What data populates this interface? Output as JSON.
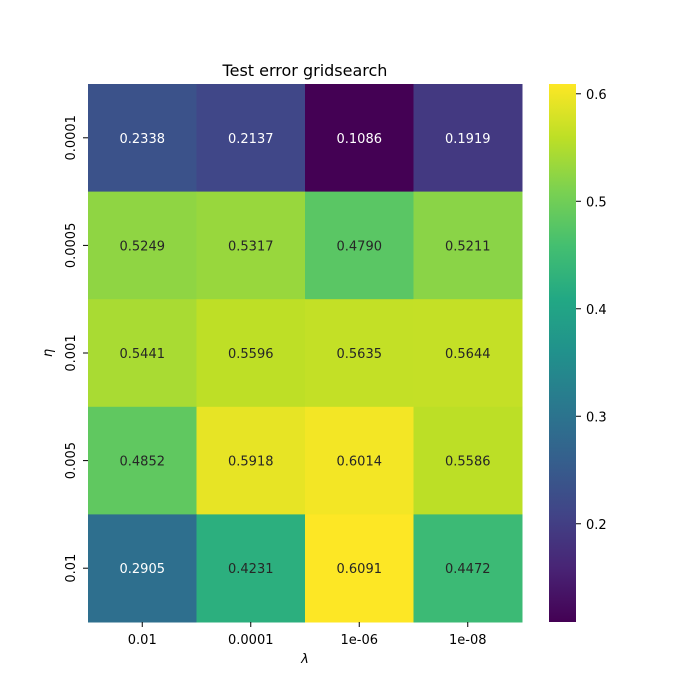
{
  "chart_data": {
    "type": "heatmap",
    "title": "Test error gridsearch",
    "xlabel": "λ",
    "ylabel": "η",
    "x_categories": [
      "0.01",
      "0.0001",
      "1e-06",
      "1e-08"
    ],
    "y_categories": [
      "0.0001",
      "0.0005",
      "0.001",
      "0.005",
      "0.01"
    ],
    "values": [
      [
        0.2338,
        0.2137,
        0.1086,
        0.1919
      ],
      [
        0.5249,
        0.5317,
        0.479,
        0.5211
      ],
      [
        0.5441,
        0.5596,
        0.5635,
        0.5644
      ],
      [
        0.4852,
        0.5918,
        0.6014,
        0.5586
      ],
      [
        0.2905,
        0.4231,
        0.6091,
        0.4472
      ]
    ],
    "cell_labels": [
      [
        "0.2338",
        "0.2137",
        "0.1086",
        "0.1919"
      ],
      [
        "0.5249",
        "0.5317",
        "0.4790",
        "0.5211"
      ],
      [
        "0.5441",
        "0.5596",
        "0.5635",
        "0.5644"
      ],
      [
        "0.4852",
        "0.5918",
        "0.6014",
        "0.5586"
      ],
      [
        "0.2905",
        "0.4231",
        "0.6091",
        "0.4472"
      ]
    ],
    "colormap": "viridis",
    "vmin": 0.1086,
    "vmax": 0.6091,
    "colorbar": {
      "ticks": [
        0.2,
        0.3,
        0.4,
        0.5,
        0.6
      ],
      "tick_labels": [
        "0.2",
        "0.3",
        "0.4",
        "0.5",
        "0.6"
      ],
      "placement": "right"
    },
    "grid": false
  }
}
